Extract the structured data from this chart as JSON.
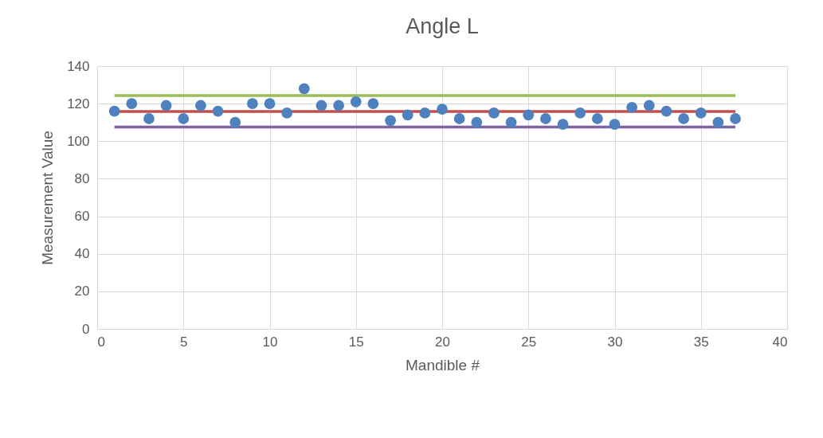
{
  "chart_data": {
    "type": "scatter",
    "title": "Angle L",
    "xlabel": "Mandible #",
    "ylabel": "Measurement Value",
    "xlim": [
      0,
      40
    ],
    "xticks": [
      0,
      5,
      10,
      15,
      20,
      25,
      30,
      35,
      40
    ],
    "ylim": [
      0,
      140
    ],
    "yticks": [
      0,
      20,
      40,
      60,
      80,
      100,
      120,
      140
    ],
    "grid": true,
    "marker": "circle",
    "series": [
      {
        "color": "#4e81bd",
        "x": [
          1,
          2,
          3,
          4,
          5,
          6,
          7,
          8,
          9,
          10,
          11,
          12,
          13,
          14,
          15,
          16,
          17,
          18,
          19,
          20,
          21,
          22,
          23,
          24,
          25,
          26,
          27,
          28,
          29,
          30,
          31,
          32,
          33,
          34,
          35,
          36,
          37
        ],
        "values": [
          116,
          120,
          112,
          119,
          112,
          119,
          116,
          110,
          120,
          120,
          115,
          128,
          119,
          119,
          121,
          120,
          111,
          114,
          115,
          117,
          112,
          110,
          115,
          110,
          114,
          112,
          109,
          115,
          112,
          109,
          118,
          119,
          116,
          112,
          115,
          110,
          112
        ]
      },
      {
        "type": "line",
        "marker": "none",
        "color": "#9bbb59",
        "x": [
          1,
          37
        ],
        "values": [
          124.3,
          124.3
        ]
      },
      {
        "type": "line",
        "marker": "none",
        "color": "#c0504d",
        "x": [
          1,
          37
        ],
        "values": [
          115.8,
          115.8
        ]
      },
      {
        "type": "line",
        "marker": "none",
        "color": "#8064a2",
        "x": [
          1,
          37
        ],
        "values": [
          107.5,
          107.5
        ]
      }
    ]
  }
}
